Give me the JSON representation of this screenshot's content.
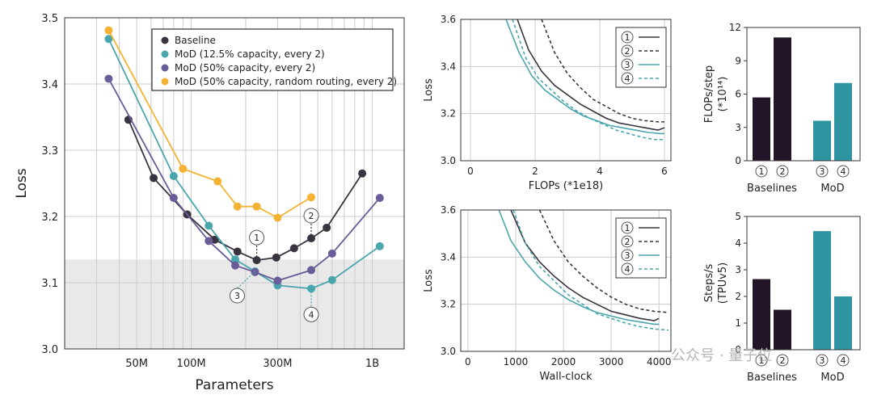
{
  "watermark": "公众号 · 量子位",
  "colors": {
    "baseline": "#3a3340",
    "mod125": "#4aa6ad",
    "mod50": "#6a5c98",
    "mod50r": "#f5b335",
    "dark_bar": "#221528",
    "teal_bar": "#2e95a0",
    "shade": "#e9e9e9",
    "grid": "#cccccc"
  },
  "chart_data": [
    {
      "id": "main",
      "type": "line",
      "xlabel": "Parameters",
      "ylabel": "Loss",
      "xscale": "log",
      "xlim": [
        20000000,
        1500000000
      ],
      "ylim": [
        3.0,
        3.5
      ],
      "yticks": [
        "3.0",
        "3.1",
        "3.2",
        "3.3",
        "3.4",
        "3.5"
      ],
      "yticks_values": [
        3.0,
        3.1,
        3.2,
        3.3,
        3.4,
        3.5
      ],
      "xticks": [
        "50M",
        "100M",
        "300M",
        "1B"
      ],
      "xticks_values": [
        50000000,
        100000000,
        300000000,
        1000000000
      ],
      "shaded_below": 3.135,
      "legend_position": "top-right",
      "series": [
        {
          "key": "baseline",
          "name": "Baseline",
          "color": "baseline",
          "x": [
            45000000,
            62000000,
            95000000,
            135000000,
            180000000,
            230000000,
            295000000,
            370000000,
            460000000,
            560000000,
            880000000
          ],
          "y": [
            3.346,
            3.258,
            3.203,
            3.165,
            3.147,
            3.134,
            3.138,
            3.152,
            3.167,
            3.183,
            3.265
          ]
        },
        {
          "key": "mod125",
          "name": "MoD (12.5% capacity, every 2)",
          "color": "mod125",
          "x": [
            35000000,
            80000000,
            125000000,
            175000000,
            225000000,
            300000000,
            460000000,
            600000000,
            1100000000
          ],
          "y": [
            3.468,
            3.261,
            3.186,
            3.135,
            3.117,
            3.096,
            3.091,
            3.104,
            3.155
          ]
        },
        {
          "key": "mod50",
          "name": "MoD (50% capacity, every 2)",
          "color": "mod50",
          "x": [
            35000000,
            80000000,
            125000000,
            175000000,
            225000000,
            300000000,
            460000000,
            600000000,
            1100000000
          ],
          "y": [
            3.408,
            3.228,
            3.163,
            3.126,
            3.116,
            3.103,
            3.119,
            3.144,
            3.228
          ]
        },
        {
          "key": "mod50r",
          "name": "MoD (50% capacity, random routing, every 2)",
          "color": "mod50r",
          "x": [
            35000000,
            90000000,
            140000000,
            180000000,
            230000000,
            300000000,
            460000000
          ],
          "y": [
            3.481,
            3.272,
            3.253,
            3.215,
            3.215,
            3.198,
            3.229
          ]
        }
      ],
      "annotations": [
        {
          "label": "1",
          "series": "baseline",
          "point_index": 5
        },
        {
          "label": "2",
          "series": "baseline",
          "point_index": 8
        },
        {
          "label": "3",
          "series": "mod125",
          "point_index": 4
        },
        {
          "label": "4",
          "series": "mod125",
          "point_index": 6
        }
      ]
    },
    {
      "id": "flops",
      "type": "line",
      "xlabel": "FLOPs (*1e18)",
      "ylabel": "Loss",
      "xlim": [
        -0.3,
        6.2
      ],
      "ylim": [
        3.0,
        3.6
      ],
      "xticks": [
        "0",
        "2",
        "4",
        "6"
      ],
      "xticks_values": [
        0,
        2,
        4,
        6
      ],
      "yticks": [
        "3.0",
        "3.2",
        "3.4",
        "3.6"
      ],
      "yticks_values": [
        3.0,
        3.2,
        3.4,
        3.6
      ],
      "legend_labels": [
        "1",
        "2",
        "3",
        "4"
      ],
      "legend_position": "top-right",
      "series": [
        {
          "label": "1",
          "color": "baseline",
          "dash": "solid",
          "x": [
            1.45,
            1.8,
            2.2,
            2.6,
            3.0,
            3.4,
            3.8,
            4.2,
            4.6,
            5.0,
            5.4,
            5.8,
            6.0
          ],
          "y": [
            3.6,
            3.47,
            3.38,
            3.32,
            3.28,
            3.24,
            3.21,
            3.18,
            3.16,
            3.15,
            3.14,
            3.13,
            3.14
          ]
        },
        {
          "label": "2",
          "color": "baseline",
          "dash": "dashed",
          "x": [
            2.2,
            2.6,
            3.0,
            3.4,
            3.8,
            4.2,
            4.6,
            5.0,
            5.4,
            5.8,
            6.0
          ],
          "y": [
            3.6,
            3.46,
            3.37,
            3.31,
            3.26,
            3.23,
            3.2,
            3.18,
            3.17,
            3.165,
            3.165
          ]
        },
        {
          "label": "3",
          "color": "mod125",
          "dash": "solid",
          "x": [
            1.1,
            1.5,
            1.9,
            2.3,
            2.7,
            3.1,
            3.5,
            3.9,
            4.3,
            4.7,
            5.1,
            5.5,
            5.9,
            6.0
          ],
          "y": [
            3.6,
            3.46,
            3.36,
            3.3,
            3.26,
            3.22,
            3.19,
            3.17,
            3.15,
            3.14,
            3.13,
            3.12,
            3.115,
            3.115
          ]
        },
        {
          "label": "4",
          "color": "mod125",
          "dash": "dashed",
          "x": [
            1.3,
            1.7,
            2.1,
            2.5,
            2.9,
            3.3,
            3.7,
            4.1,
            4.5,
            4.9,
            5.3,
            5.7,
            6.0
          ],
          "y": [
            3.6,
            3.44,
            3.35,
            3.3,
            3.25,
            3.21,
            3.18,
            3.155,
            3.13,
            3.115,
            3.1,
            3.09,
            3.09
          ]
        }
      ]
    },
    {
      "id": "wall",
      "type": "line",
      "xlabel": "Wall-clock",
      "ylabel": "Loss",
      "xlim": [
        -150,
        4250
      ],
      "ylim": [
        3.0,
        3.6
      ],
      "xticks": [
        "0",
        "1000",
        "2000",
        "3000",
        "4000"
      ],
      "xticks_values": [
        0,
        1000,
        2000,
        3000,
        4000
      ],
      "yticks": [
        "3.0",
        "3.2",
        "3.4",
        "3.6"
      ],
      "yticks_values": [
        3.0,
        3.2,
        3.4,
        3.6
      ],
      "legend_labels": [
        "1",
        "2",
        "3",
        "4"
      ],
      "legend_position": "top-right",
      "series": [
        {
          "label": "1",
          "color": "baseline",
          "dash": "solid",
          "x": [
            900,
            1200,
            1500,
            1800,
            2100,
            2400,
            2700,
            3000,
            3300,
            3600,
            3900,
            4000
          ],
          "y": [
            3.6,
            3.46,
            3.38,
            3.32,
            3.27,
            3.23,
            3.2,
            3.17,
            3.155,
            3.14,
            3.13,
            3.14
          ]
        },
        {
          "label": "2",
          "color": "baseline",
          "dash": "dashed",
          "x": [
            1500,
            1800,
            2100,
            2400,
            2700,
            3000,
            3300,
            3600,
            3900,
            4200
          ],
          "y": [
            3.6,
            3.47,
            3.38,
            3.32,
            3.27,
            3.23,
            3.2,
            3.18,
            3.17,
            3.165
          ]
        },
        {
          "label": "3",
          "color": "mod125",
          "dash": "solid",
          "x": [
            650,
            900,
            1200,
            1500,
            1800,
            2100,
            2400,
            2700,
            3000,
            3300,
            3600,
            3900,
            4000
          ],
          "y": [
            3.6,
            3.47,
            3.38,
            3.31,
            3.26,
            3.22,
            3.19,
            3.165,
            3.15,
            3.135,
            3.125,
            3.115,
            3.115
          ]
        },
        {
          "label": "4",
          "color": "mod125",
          "dash": "dashed",
          "x": [
            950,
            1200,
            1500,
            1800,
            2100,
            2400,
            2700,
            3000,
            3300,
            3600,
            3900,
            4200
          ],
          "y": [
            3.6,
            3.46,
            3.36,
            3.3,
            3.24,
            3.2,
            3.16,
            3.14,
            3.12,
            3.105,
            3.095,
            3.09
          ]
        }
      ]
    },
    {
      "id": "flops_step",
      "type": "bar",
      "ylabel_line1": "FLOPs/step",
      "ylabel_line2": "(*10¹⁴)",
      "ylim": [
        0,
        12
      ],
      "yticks": [
        "0",
        "3",
        "6",
        "9",
        "12"
      ],
      "yticks_values": [
        0,
        3,
        6,
        9,
        12
      ],
      "categories": [
        "1",
        "2",
        "3",
        "4"
      ],
      "values": [
        5.7,
        11.1,
        3.6,
        7.0
      ],
      "bar_colors": [
        "dark_bar",
        "dark_bar",
        "teal_bar",
        "teal_bar"
      ],
      "groups": [
        "Baselines",
        "MoD"
      ]
    },
    {
      "id": "steps_s",
      "type": "bar",
      "ylabel_line1": "Steps/s",
      "ylabel_line2": "(TPUv5)",
      "ylim": [
        0,
        5
      ],
      "yticks": [
        "0",
        "1",
        "2",
        "3",
        "4",
        "5"
      ],
      "yticks_values": [
        0,
        1,
        2,
        3,
        4,
        5
      ],
      "categories": [
        "1",
        "2",
        "3",
        "4"
      ],
      "values": [
        2.65,
        1.5,
        4.45,
        2.0
      ],
      "bar_colors": [
        "dark_bar",
        "dark_bar",
        "teal_bar",
        "teal_bar"
      ],
      "groups": [
        "Baselines",
        "MoD"
      ]
    }
  ]
}
